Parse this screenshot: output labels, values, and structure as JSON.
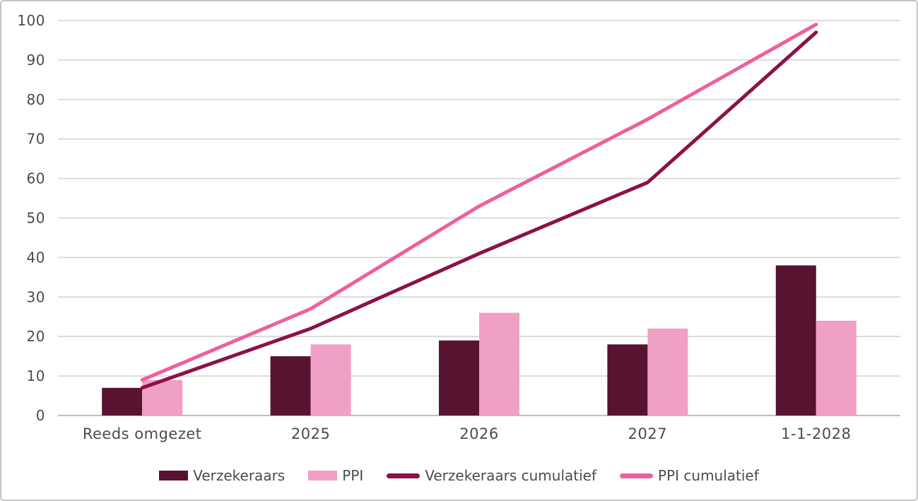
{
  "chart_data": {
    "type": "combo",
    "title": "",
    "categories": [
      "Reeds omgezet",
      "2025",
      "2026",
      "2027",
      "1-1-2028"
    ],
    "series": [
      {
        "name": "Verzekeraars",
        "type": "bar",
        "color": "#581331",
        "values": [
          7,
          15,
          19,
          18,
          38
        ]
      },
      {
        "name": "PPI",
        "type": "bar",
        "color": "#F1A0C5",
        "values": [
          9,
          18,
          26,
          22,
          24
        ]
      },
      {
        "name": "Verzekeraars cumulatief",
        "type": "line",
        "color": "#8C1149",
        "values": [
          7,
          22,
          41,
          59,
          97
        ]
      },
      {
        "name": "PPI cumulatief",
        "type": "line",
        "color": "#EE5F9D",
        "values": [
          9,
          27,
          53,
          75,
          99
        ]
      }
    ],
    "xlabel": "",
    "ylabel": "",
    "ylim": [
      0,
      100
    ],
    "yticks": [
      0,
      10,
      20,
      30,
      40,
      50,
      60,
      70,
      80,
      90,
      100
    ],
    "grid": true,
    "legend_position": "bottom"
  },
  "style": {
    "background": "#FFFFFF",
    "border_color": "#C4C4C4",
    "grid_color": "#D8D8D8",
    "axis_line_color": "#BFBFBF",
    "text_color": "#4A4C52"
  }
}
